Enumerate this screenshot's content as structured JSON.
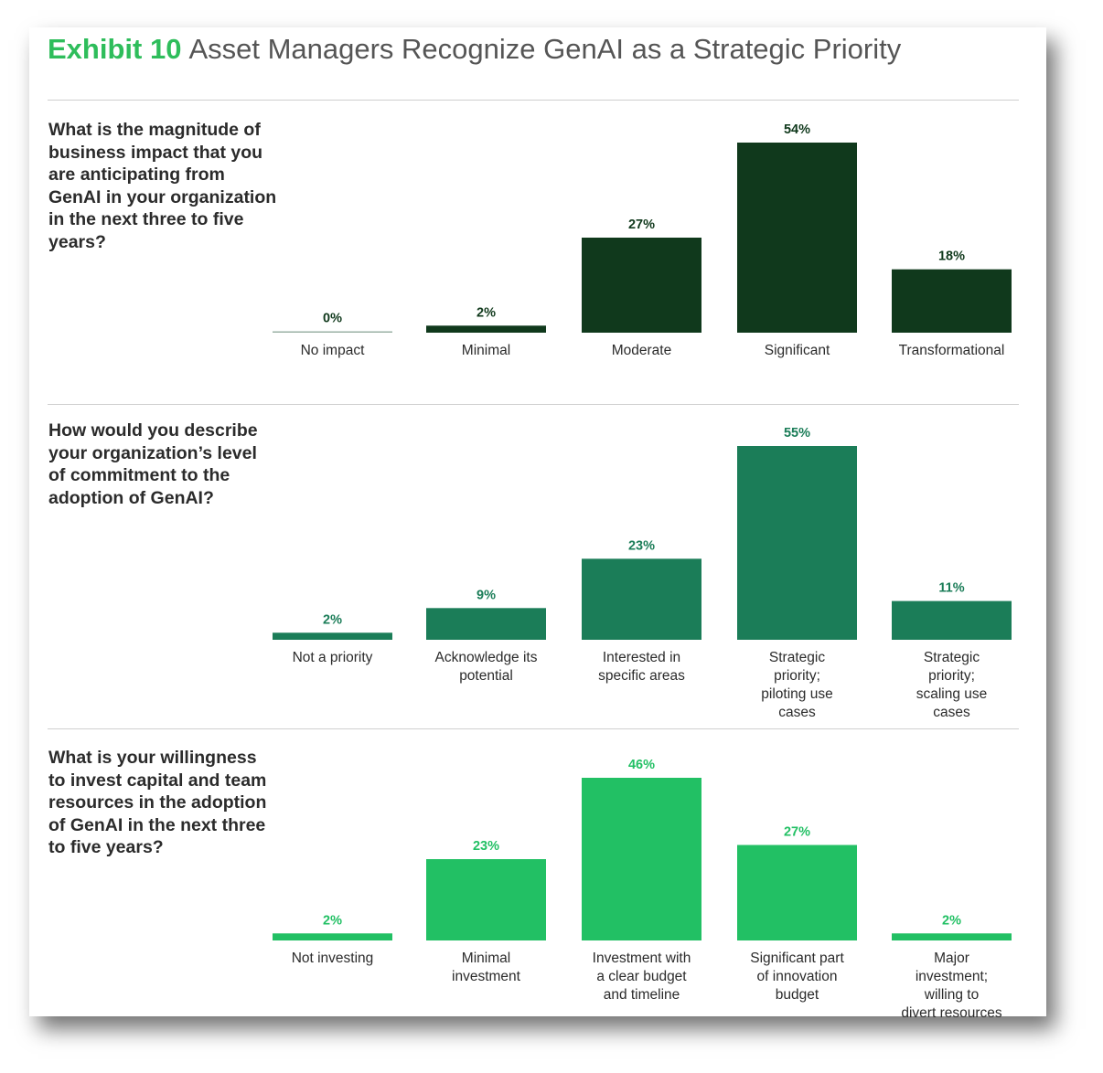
{
  "title": {
    "exhibit": "Exhibit 10",
    "text": "Asset Managers Recognize GenAI as a Strategic Priority"
  },
  "colors": {
    "exhibit_green": "#2ebd5b",
    "panel1": "#10391c",
    "panel2": "#1b7d58",
    "panel3": "#22c064",
    "zero_bar": "#9ab0a4",
    "text": "#2b2b2b"
  },
  "chart_data": [
    {
      "type": "bar",
      "title": "What is the magnitude of business impact that you are anticipating from GenAI in your organization in the next three to five years?",
      "categories": [
        "No impact",
        "Minimal",
        "Moderate",
        "Significant",
        "Transformational"
      ],
      "values": [
        0,
        2,
        27,
        54,
        18
      ],
      "labels": [
        "0%",
        "2%",
        "27%",
        "54%",
        "18%"
      ],
      "color": "#10391c",
      "label_color": "#10391c",
      "ylim": [
        0,
        54
      ]
    },
    {
      "type": "bar",
      "title": "How would you describe your organization’s level of commitment to the adoption of GenAI?",
      "categories": [
        "Not a priority",
        "Acknowledge its potential",
        "Interested in specific areas",
        "Strategic priority; piloting use cases",
        "Strategic priority; scaling use cases"
      ],
      "values": [
        2,
        9,
        23,
        55,
        11
      ],
      "labels": [
        "2%",
        "9%",
        "23%",
        "55%",
        "11%"
      ],
      "color": "#1b7d58",
      "label_color": "#1b7d58",
      "ylim": [
        0,
        55
      ]
    },
    {
      "type": "bar",
      "title": "What is your willingness to invest capital and team resources in the adoption of GenAI in the next three to five years?",
      "categories": [
        "Not investing",
        "Minimal investment",
        "Investment with a clear budget and timeline",
        "Significant part of innovation budget",
        "Major investment; willing to divert resources"
      ],
      "values": [
        2,
        23,
        46,
        27,
        2
      ],
      "labels": [
        "2%",
        "23%",
        "46%",
        "27%",
        "2%"
      ],
      "color": "#22c064",
      "label_color": "#22c064",
      "ylim": [
        0,
        46
      ]
    }
  ]
}
